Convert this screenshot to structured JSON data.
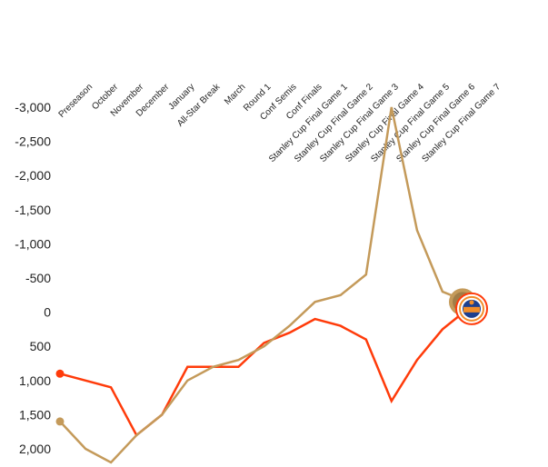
{
  "chart_data": {
    "type": "line",
    "title": "",
    "xlabel": "",
    "ylabel": "",
    "categories": [
      "Preseason",
      "October",
      "November",
      "December",
      "January",
      "All-Star Break",
      "March",
      "Round 1",
      "Conf Semis",
      "Conf Finals",
      "Stanley Cup Final Game 1",
      "Stanley Cup Final Game 2",
      "Stanley Cup Final Game 3",
      "Stanley Cup Final Game 4",
      "Stanley Cup Final Game 5",
      "Stanley Cup Final Game 6",
      "Stanley Cup Final Game 7"
    ],
    "y_ticks": [
      -3000,
      -2500,
      -2000,
      -1500,
      -1000,
      -500,
      0,
      500,
      1000,
      1500,
      2000
    ],
    "y_tick_labels": [
      "-3,000",
      "-2,500",
      "-2,000",
      "-1,500",
      "-1,000",
      "-500",
      "0",
      "500",
      "1,000",
      "1,500",
      "2,000"
    ],
    "ylim": [
      -3000,
      2000
    ],
    "y_inverted": true,
    "grid": false,
    "legend": "none",
    "series": [
      {
        "color": "#ff3b0a",
        "values": [
          900,
          1000,
          1100,
          1800,
          1500,
          800,
          800,
          800,
          450,
          300,
          100,
          200,
          400,
          1300,
          700,
          250,
          -50
        ]
      },
      {
        "color": "#c49a5a",
        "values": [
          1600,
          2000,
          2200,
          1800,
          1500,
          1000,
          800,
          700,
          500,
          200,
          -150,
          -250,
          -550,
          -3000,
          -1200,
          -300,
          -150
        ]
      }
    ],
    "end_marker_icon": "oilers-logo-icon"
  }
}
